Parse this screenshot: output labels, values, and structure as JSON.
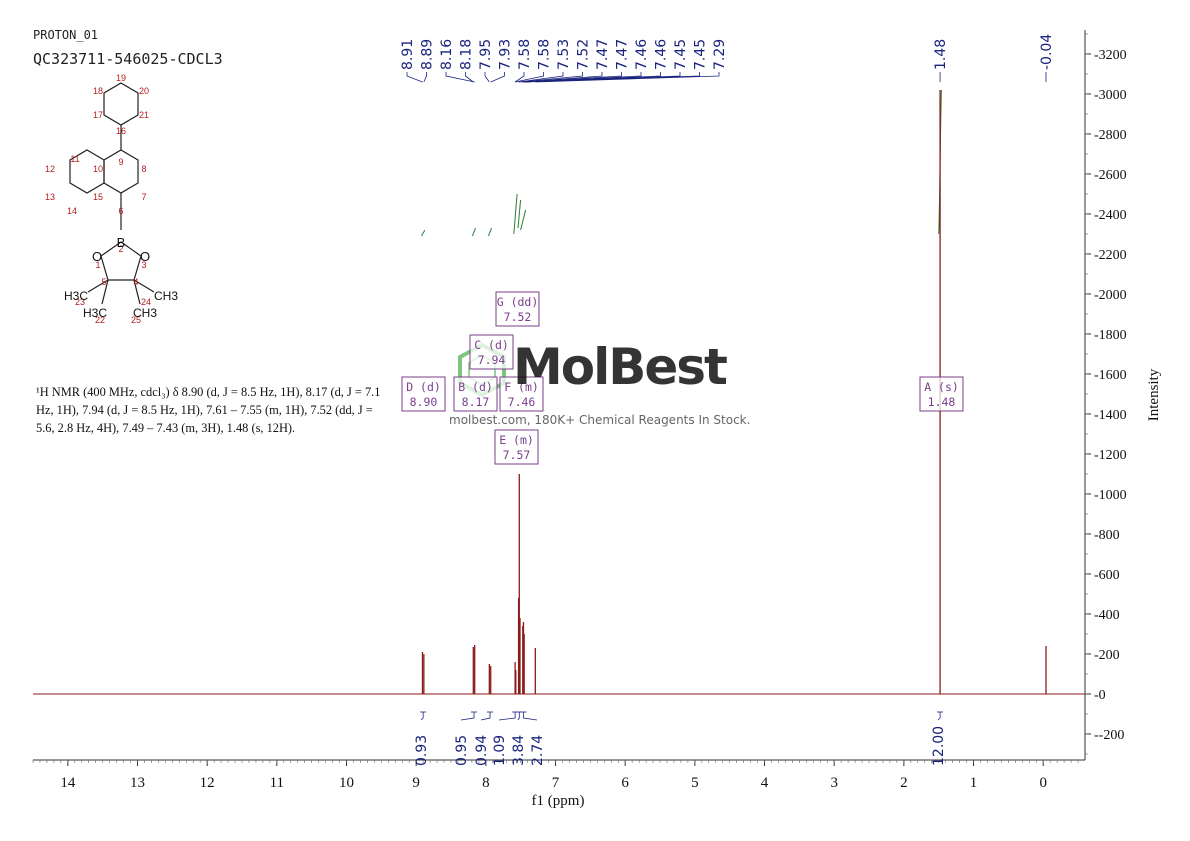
{
  "header": {
    "experiment": "PROTON_01",
    "sample": "QC323711-546025-CDCL3"
  },
  "structure": {
    "atom_numbers": [
      "19",
      "18",
      "20",
      "17",
      "21",
      "16",
      "11",
      "9",
      "12",
      "10",
      "8",
      "13",
      "15",
      "7",
      "14",
      "6",
      "2",
      "1",
      "3",
      "5",
      "4",
      "23",
      "22",
      "24",
      "25"
    ],
    "atoms": [
      "B",
      "O",
      "O"
    ],
    "methyls": [
      "H3C",
      "H3C",
      "CH3",
      "CH3"
    ]
  },
  "description": {
    "text": "¹H NMR (400 MHz, cdcl₃) δ 8.90 (d, J = 8.5 Hz, 1H), 8.17 (d, J = 7.1 Hz, 1H), 7.94 (d, J = 8.5 Hz, 1H), 7.61 – 7.55 (m, 1H), 7.52 (dd, J = 5.6, 2.8 Hz, 4H), 7.49 – 7.43 (m, 3H), 1.48 (s, 12H)."
  },
  "watermark": {
    "brand": "MolBest",
    "tagline": "molbest.com, 180K+ Chemical Reagents In Stock."
  },
  "colors": {
    "spectrum": "#8b1a1a",
    "integral": "#2e7d32",
    "labels": "#1a237e",
    "boxes": "#7b3f8c",
    "watermark": "#4caf50"
  },
  "chart_data": {
    "type": "line",
    "xlabel": "f1 (ppm)",
    "ylabel": "Intensity",
    "xlim": [
      14.5,
      -0.6
    ],
    "ylim": [
      -330,
      3320
    ],
    "x_ticks": [
      14,
      13,
      12,
      11,
      10,
      9,
      8,
      7,
      6,
      5,
      4,
      3,
      2,
      1,
      0
    ],
    "y_ticks": [
      -200,
      0,
      200,
      400,
      600,
      800,
      1000,
      1200,
      1400,
      1600,
      1800,
      2000,
      2200,
      2400,
      2600,
      2800,
      3000,
      3200
    ],
    "peak_labels": [
      "8.91",
      "8.89",
      "8.16",
      "8.18",
      "7.95",
      "7.93",
      "7.58",
      "7.58",
      "7.53",
      "7.52",
      "7.47",
      "7.47",
      "7.46",
      "7.46",
      "7.45",
      "7.45",
      "7.29"
    ],
    "peak_labels_upfield": [
      "1.48",
      "-0.04"
    ],
    "peaks": [
      {
        "ppm": 8.91,
        "intensity": 210
      },
      {
        "ppm": 8.89,
        "intensity": 200
      },
      {
        "ppm": 8.18,
        "intensity": 235
      },
      {
        "ppm": 8.16,
        "intensity": 245
      },
      {
        "ppm": 7.95,
        "intensity": 150
      },
      {
        "ppm": 7.93,
        "intensity": 140
      },
      {
        "ppm": 7.58,
        "intensity": 160
      },
      {
        "ppm": 7.57,
        "intensity": 120
      },
      {
        "ppm": 7.53,
        "intensity": 480
      },
      {
        "ppm": 7.52,
        "intensity": 1100
      },
      {
        "ppm": 7.51,
        "intensity": 380
      },
      {
        "ppm": 7.47,
        "intensity": 340
      },
      {
        "ppm": 7.46,
        "intensity": 360
      },
      {
        "ppm": 7.45,
        "intensity": 300
      },
      {
        "ppm": 7.29,
        "intensity": 230
      },
      {
        "ppm": 1.48,
        "intensity": 3020
      },
      {
        "ppm": -0.04,
        "intensity": 240
      }
    ],
    "multiplets": [
      {
        "letter": "G",
        "type": "dd",
        "shift": "7.52"
      },
      {
        "letter": "C",
        "type": "d",
        "shift": "7.94"
      },
      {
        "letter": "D",
        "type": "d",
        "shift": "8.90"
      },
      {
        "letter": "B",
        "type": "d",
        "shift": "8.17"
      },
      {
        "letter": "F",
        "type": "m",
        "shift": "7.46"
      },
      {
        "letter": "E",
        "type": "m",
        "shift": "7.57"
      },
      {
        "letter": "A",
        "type": "s",
        "shift": "1.48"
      }
    ],
    "integrals": [
      "0.93",
      "0.95",
      "0.94",
      "1.09",
      "3.84",
      "2.74",
      "12.00"
    ]
  }
}
